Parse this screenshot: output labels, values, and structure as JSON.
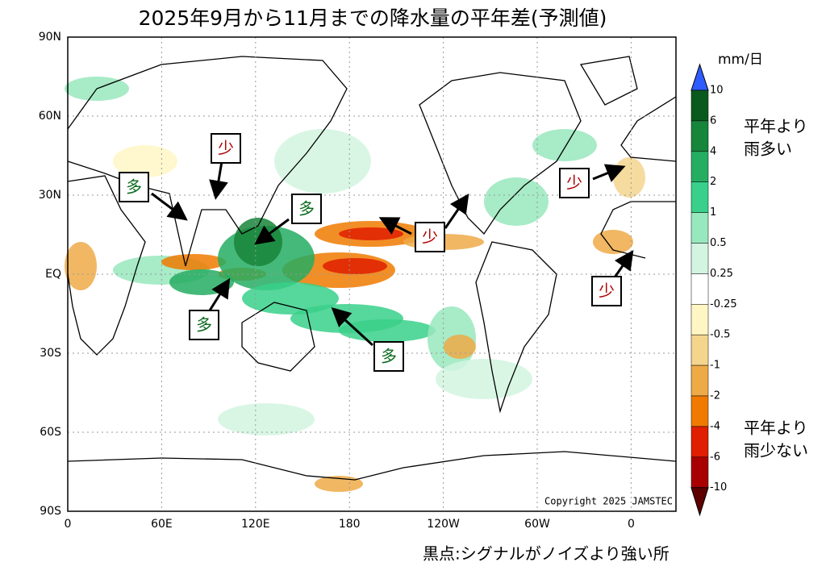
{
  "title": "2025年9月から11月までの降水量の平年差(予測値)",
  "y_axis_labels": [
    "90N",
    "60N",
    "30N",
    "EQ",
    "30S",
    "60S",
    "90S"
  ],
  "x_axis_labels": [
    "0",
    "60E",
    "120E",
    "180",
    "120W",
    "60W",
    "0"
  ],
  "colorbar": {
    "unit": "mm/日",
    "labels": [
      "10",
      "6",
      "4",
      "2",
      "1",
      "0.5",
      "0.25",
      "-0.25",
      "-0.5",
      "-1",
      "-2",
      "-4",
      "-6",
      "-10"
    ],
    "colors": [
      "#2f5cff",
      "#0a5a1e",
      "#17853a",
      "#25ad62",
      "#38d08a",
      "#98e8bd",
      "#d2f4e0",
      "#ffffff",
      "#fff6c4",
      "#f5d58e",
      "#efaa48",
      "#f07a00",
      "#e01e00",
      "#a80000",
      "#5e0000"
    ]
  },
  "legend_wet": [
    "平年より",
    "雨多い"
  ],
  "legend_dry": [
    "平年より",
    "雨少ない"
  ],
  "annotations": [
    {
      "label": "少",
      "kind": "dry"
    },
    {
      "label": "多",
      "kind": "wet"
    },
    {
      "label": "多",
      "kind": "wet"
    },
    {
      "label": "少",
      "kind": "dry"
    },
    {
      "label": "少",
      "kind": "dry"
    },
    {
      "label": "少",
      "kind": "dry"
    },
    {
      "label": "多",
      "kind": "wet"
    },
    {
      "label": "多",
      "kind": "wet"
    }
  ],
  "copyright": "Copyright 2025 JAMSTEC",
  "footnote": "黒点:シグナルがノイズより強い所"
}
